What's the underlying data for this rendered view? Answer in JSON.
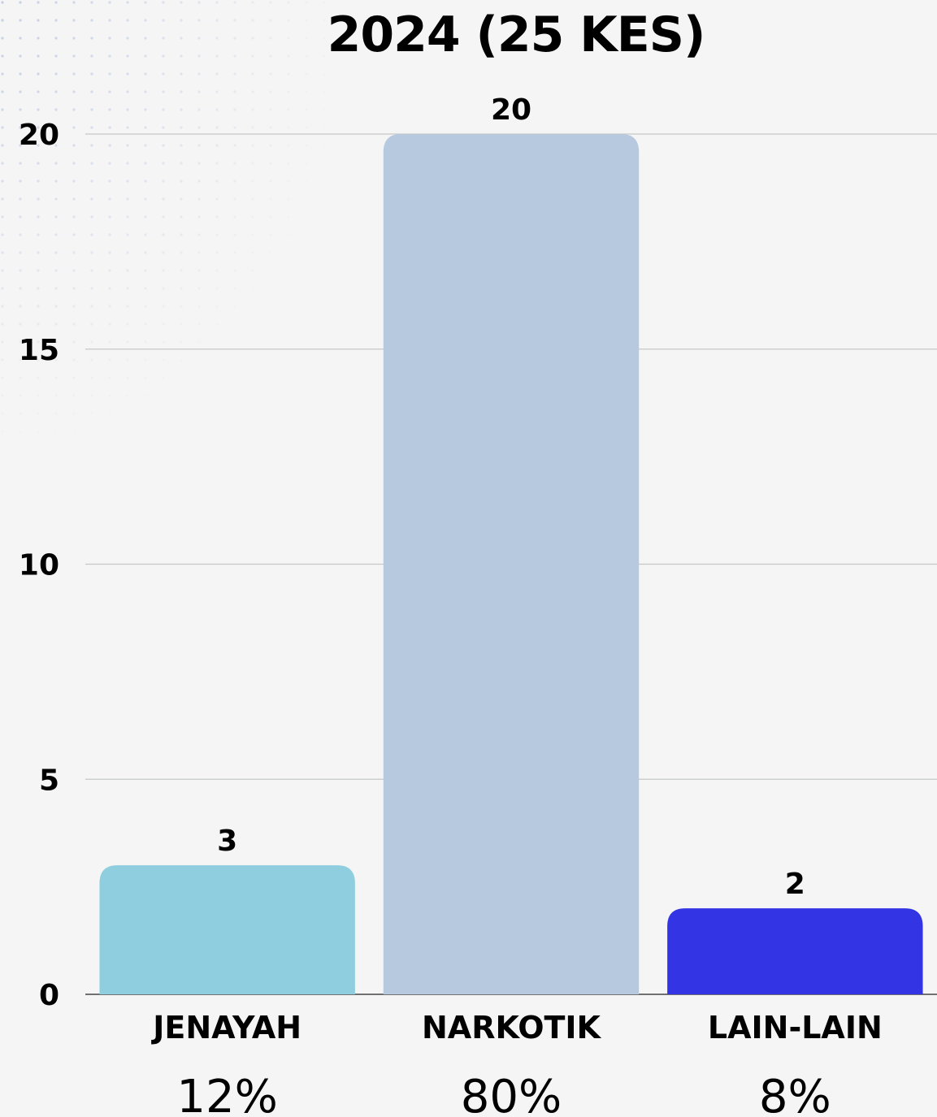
{
  "chart_data": {
    "type": "bar",
    "title": "2024 (25 KES)",
    "categories": [
      "JENAYAH",
      "NARKOTIK",
      "LAIN-LAIN"
    ],
    "values": [
      3,
      20,
      2
    ],
    "percentages": [
      "12%",
      "80%",
      "8%"
    ],
    "bar_colors": [
      "#8fcede",
      "#b7c9df",
      "#3334e4"
    ],
    "y_ticks": [
      0,
      5,
      10,
      15,
      20
    ],
    "ylim": [
      0,
      20
    ],
    "xlabel": "",
    "ylabel": "",
    "grid": true,
    "show_data_labels": true
  }
}
